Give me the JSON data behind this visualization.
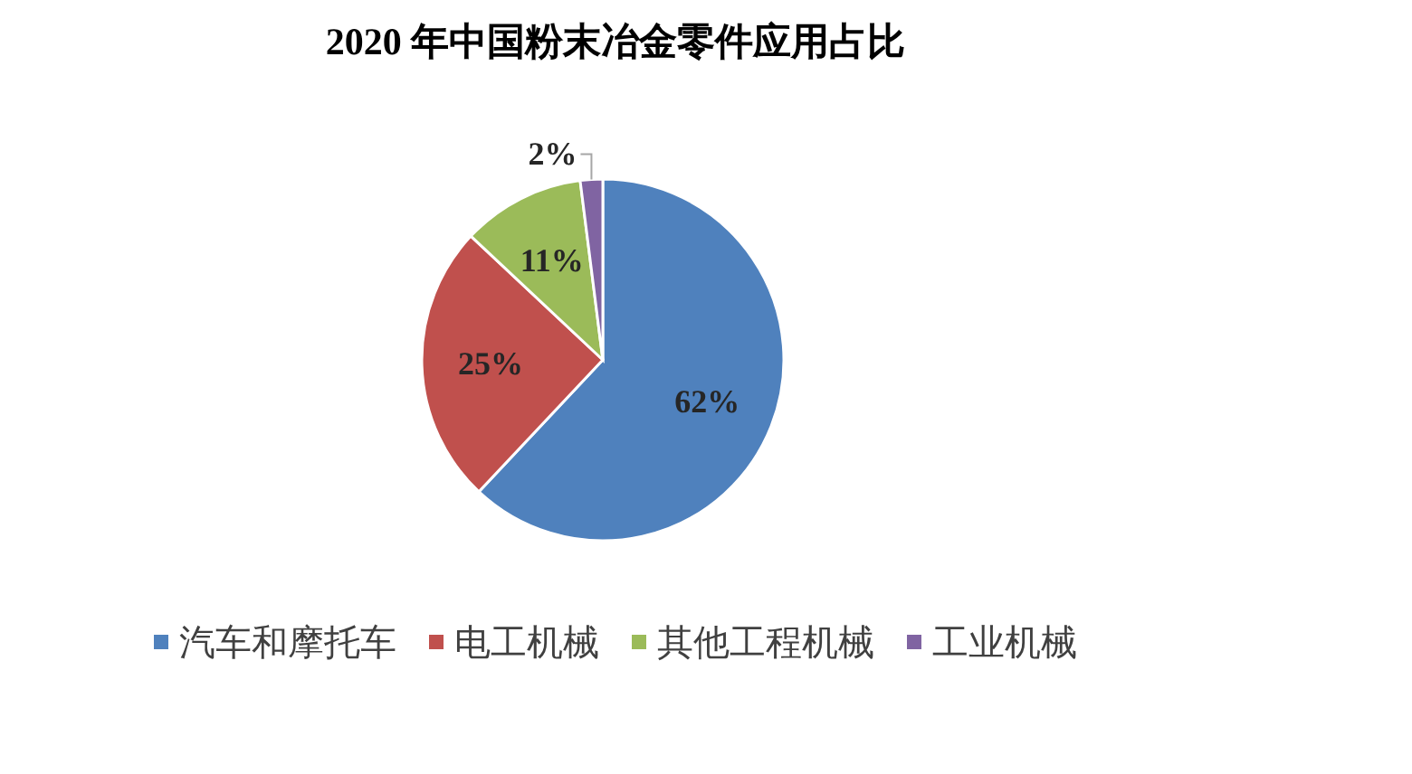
{
  "chart_data": {
    "type": "pie",
    "title": "2020 年中国粉末冶金零件应用占比",
    "categories": [
      "汽车和摩托车",
      "电工机械",
      "其他工程机械",
      "工业机械"
    ],
    "values": [
      62,
      25,
      11,
      2
    ],
    "colors": [
      "#4f81bd",
      "#c0504d",
      "#9bbb59",
      "#8064a2"
    ],
    "value_labels": [
      "62%",
      "25%",
      "11%",
      "2%"
    ],
    "legend": "bottom"
  }
}
